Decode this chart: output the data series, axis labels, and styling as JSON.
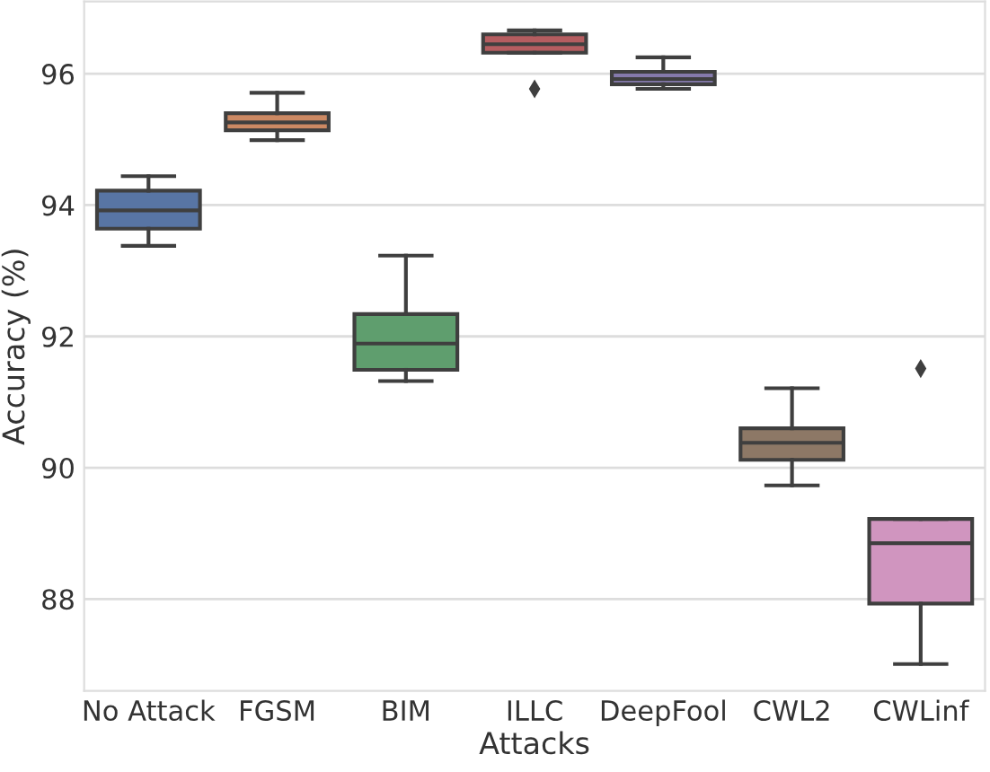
{
  "chart_data": {
    "type": "box",
    "xlabel": "Attacks",
    "ylabel": "Accuracy (%)",
    "categories": [
      "No Attack",
      "FGSM",
      "BIM",
      "ILLC",
      "DeepFool",
      "CWL2",
      "CWLinf"
    ],
    "colors": [
      "#5875a4",
      "#cc8963",
      "#5f9e6e",
      "#b55d60",
      "#857aab",
      "#8d7866",
      "#d095bf"
    ],
    "boxes": [
      {
        "low": 93.38,
        "q1": 93.64,
        "median": 93.92,
        "q3": 94.22,
        "high": 94.44
      },
      {
        "low": 94.99,
        "q1": 95.14,
        "median": 95.26,
        "q3": 95.4,
        "high": 95.71
      },
      {
        "low": 91.32,
        "q1": 91.49,
        "median": 91.89,
        "q3": 92.34,
        "high": 93.23
      },
      {
        "low": 96.32,
        "q1": 96.32,
        "median": 96.45,
        "q3": 96.6,
        "high": 96.66,
        "outliers": [
          95.77
        ]
      },
      {
        "low": 95.77,
        "q1": 95.84,
        "median": 95.92,
        "q3": 96.03,
        "high": 96.25
      },
      {
        "low": 89.73,
        "q1": 90.12,
        "median": 90.38,
        "q3": 90.6,
        "high": 91.21
      },
      {
        "low": 87.01,
        "q1": 87.93,
        "median": 88.85,
        "q3": 89.22,
        "high": 89.22,
        "outliers": [
          91.51
        ]
      }
    ],
    "ylim": [
      86.6,
      97.1
    ],
    "yticks": [
      88,
      90,
      92,
      94,
      96
    ],
    "grid": "y"
  }
}
